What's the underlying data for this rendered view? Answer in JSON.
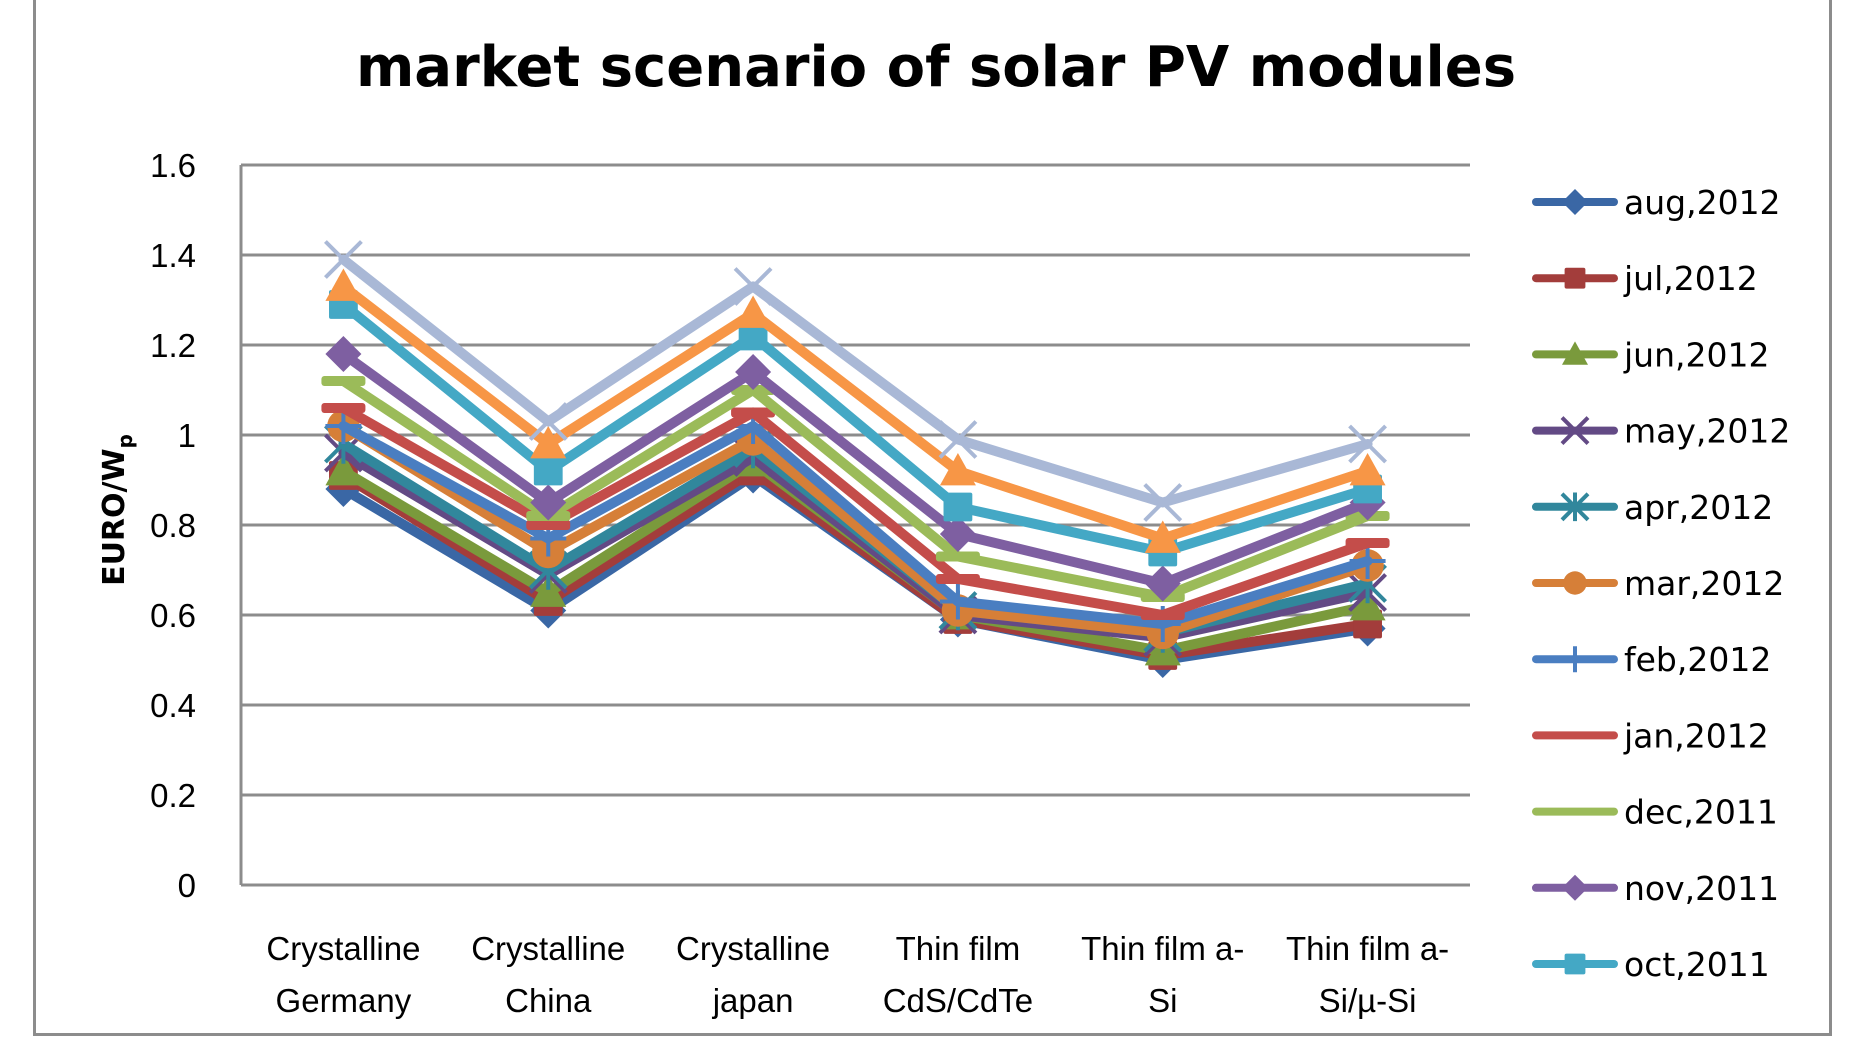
{
  "chart_data": {
    "type": "line",
    "title": "market scenario of solar PV modules",
    "xlabel": "",
    "ylabel": "EURO/W",
    "ylabel_subscript": "p",
    "ylim": [
      0,
      1.6
    ],
    "yticks": [
      "0",
      "0.2",
      "0.4",
      "0.6",
      "0.8",
      "1",
      "1.2",
      "1.4",
      "1.6"
    ],
    "ytick_values": [
      0,
      0.2,
      0.4,
      0.6,
      0.8,
      1.0,
      1.2,
      1.4,
      1.6
    ],
    "grid": true,
    "legend_position": "right",
    "categories": [
      [
        "Crystalline",
        "Germany"
      ],
      [
        "Crystalline",
        "China"
      ],
      [
        "Crystalline",
        "japan"
      ],
      [
        "Thin film",
        "CdS/CdTe"
      ],
      [
        "Thin film a-",
        "Si"
      ],
      [
        "Thin film a-",
        "Si/µ-Si"
      ]
    ],
    "series": [
      {
        "name": "aug,2012",
        "color": "#3a67a5",
        "marker": "diamond",
        "in_legend": true,
        "values": [
          0.88,
          0.61,
          0.91,
          0.59,
          0.5,
          0.57
        ]
      },
      {
        "name": "jul,2012",
        "color": "#a33d3b",
        "marker": "square",
        "in_legend": true,
        "values": [
          0.91,
          0.63,
          0.92,
          0.59,
          0.51,
          0.58
        ]
      },
      {
        "name": "jun,2012",
        "color": "#7a9a3c",
        "marker": "triangle",
        "in_legend": true,
        "values": [
          0.92,
          0.65,
          0.94,
          0.6,
          0.52,
          0.62
        ]
      },
      {
        "name": "may,2012",
        "color": "#634a85",
        "marker": "x",
        "in_legend": true,
        "values": [
          0.96,
          0.69,
          0.95,
          0.6,
          0.55,
          0.65
        ]
      },
      {
        "name": "apr,2012",
        "color": "#31879c",
        "marker": "asterisk",
        "in_legend": true,
        "values": [
          0.98,
          0.7,
          0.97,
          0.61,
          0.56,
          0.67
        ]
      },
      {
        "name": "mar,2012",
        "color": "#d67f38",
        "marker": "circle",
        "in_legend": true,
        "values": [
          1.02,
          0.74,
          0.99,
          0.61,
          0.56,
          0.71
        ]
      },
      {
        "name": "feb,2012",
        "color": "#4a7ec1",
        "marker": "plus",
        "in_legend": true,
        "values": [
          1.02,
          0.77,
          1.02,
          0.63,
          0.58,
          0.72
        ]
      },
      {
        "name": "jan,2012",
        "color": "#c44d4a",
        "marker": "none",
        "in_legend": true,
        "values": [
          1.06,
          0.8,
          1.05,
          0.68,
          0.6,
          0.76
        ]
      },
      {
        "name": "dec,2011",
        "color": "#9bbb59",
        "marker": "none",
        "in_legend": true,
        "values": [
          1.12,
          0.82,
          1.1,
          0.73,
          0.64,
          0.82
        ]
      },
      {
        "name": "nov,2011",
        "color": "#7e5fa1",
        "marker": "diamond",
        "in_legend": true,
        "values": [
          1.18,
          0.85,
          1.14,
          0.78,
          0.67,
          0.85
        ]
      },
      {
        "name": "oct,2011",
        "color": "#44a8c5",
        "marker": "square",
        "in_legend": true,
        "values": [
          1.29,
          0.92,
          1.22,
          0.84,
          0.74,
          0.88
        ]
      },
      {
        "name": "",
        "color": "#f79646",
        "marker": "triangle",
        "in_legend": false,
        "values": [
          1.33,
          0.98,
          1.27,
          0.92,
          0.77,
          0.92
        ]
      },
      {
        "name": "",
        "color": "#a9b8d6",
        "marker": "x",
        "in_legend": false,
        "values": [
          1.39,
          1.03,
          1.33,
          0.99,
          0.85,
          0.98
        ]
      }
    ]
  }
}
